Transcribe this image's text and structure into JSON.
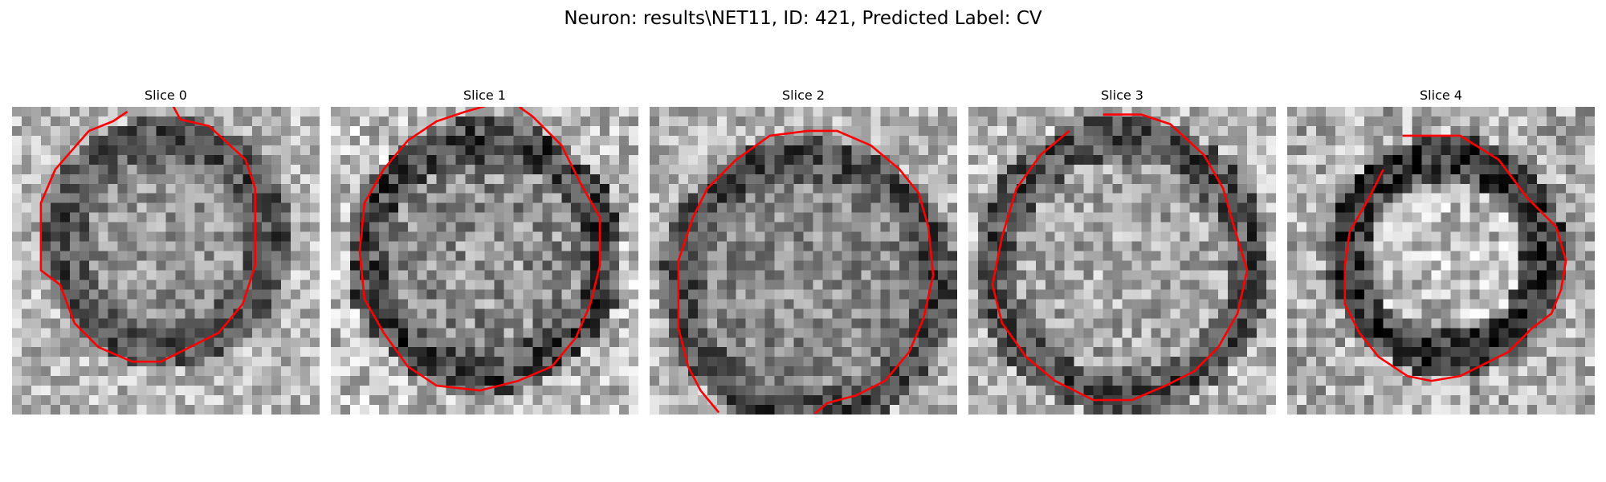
{
  "figure": {
    "title": "Neuron: results\\NET11, ID: 421, Predicted Label: CV"
  },
  "panels": [
    {
      "title": "Slice 0"
    },
    {
      "title": "Slice 1"
    },
    {
      "title": "Slice 2"
    },
    {
      "title": "Slice 3"
    },
    {
      "title": "Slice 4"
    }
  ],
  "colors": {
    "contour": "#ff0000"
  }
}
